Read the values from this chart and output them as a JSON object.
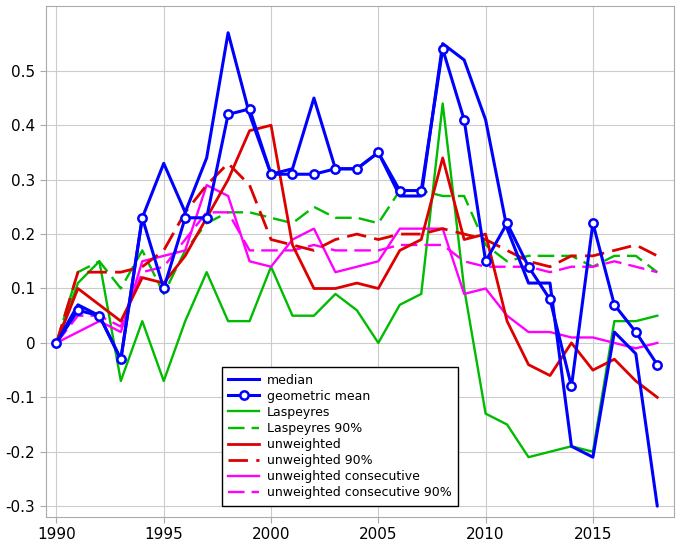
{
  "years": [
    1990,
    1991,
    1992,
    1993,
    1994,
    1995,
    1996,
    1997,
    1998,
    1999,
    2000,
    2001,
    2002,
    2003,
    2004,
    2005,
    2006,
    2007,
    2008,
    2009,
    2010,
    2011,
    2012,
    2013,
    2014,
    2015,
    2016,
    2017,
    2018
  ],
  "median": [
    0.0,
    0.07,
    0.05,
    -0.03,
    0.23,
    0.33,
    0.24,
    0.34,
    0.57,
    0.42,
    0.31,
    0.32,
    0.45,
    0.32,
    0.32,
    0.35,
    0.27,
    0.27,
    0.55,
    0.52,
    0.41,
    0.21,
    0.11,
    0.11,
    -0.19,
    -0.21,
    0.02,
    -0.02,
    -0.3
  ],
  "geo_mean": [
    0.0,
    0.06,
    0.05,
    -0.03,
    0.23,
    0.1,
    0.23,
    0.23,
    0.42,
    0.43,
    0.31,
    0.31,
    0.31,
    0.32,
    0.32,
    0.35,
    0.28,
    0.28,
    0.54,
    0.41,
    0.15,
    0.22,
    0.14,
    0.08,
    -0.08,
    0.22,
    0.07,
    0.02,
    -0.04
  ],
  "laspeyres": [
    0.0,
    0.11,
    0.15,
    -0.07,
    0.04,
    -0.07,
    0.04,
    0.13,
    0.04,
    0.04,
    0.14,
    0.05,
    0.05,
    0.09,
    0.06,
    0.0,
    0.07,
    0.09,
    0.44,
    0.1,
    -0.13,
    -0.15,
    -0.21,
    -0.2,
    -0.19,
    -0.2,
    0.04,
    0.04,
    0.05
  ],
  "laspeyres90": [
    0.0,
    0.13,
    0.15,
    0.1,
    0.17,
    0.09,
    0.17,
    0.22,
    0.24,
    0.24,
    0.23,
    0.22,
    0.25,
    0.23,
    0.23,
    0.22,
    0.28,
    0.28,
    0.27,
    0.27,
    0.18,
    0.15,
    0.16,
    0.16,
    0.16,
    0.14,
    0.16,
    0.16,
    0.13
  ],
  "unweighted": [
    0.0,
    0.1,
    0.07,
    0.04,
    0.12,
    0.11,
    0.16,
    0.23,
    0.3,
    0.39,
    0.4,
    0.18,
    0.1,
    0.1,
    0.11,
    0.1,
    0.17,
    0.19,
    0.34,
    0.19,
    0.2,
    0.04,
    -0.04,
    -0.06,
    0.0,
    -0.05,
    -0.03,
    -0.07,
    -0.1
  ],
  "unweighted90": [
    0.0,
    0.13,
    0.13,
    0.13,
    0.14,
    0.17,
    0.24,
    0.29,
    0.33,
    0.29,
    0.19,
    0.18,
    0.17,
    0.19,
    0.2,
    0.19,
    0.2,
    0.2,
    0.21,
    0.2,
    0.19,
    0.17,
    0.15,
    0.14,
    0.16,
    0.16,
    0.17,
    0.18,
    0.16
  ],
  "unweighted_consec": [
    0.0,
    0.02,
    0.04,
    0.02,
    0.15,
    0.16,
    0.17,
    0.29,
    0.27,
    0.15,
    0.14,
    0.19,
    0.21,
    0.13,
    0.14,
    0.15,
    0.21,
    0.21,
    0.21,
    0.09,
    0.1,
    0.05,
    0.02,
    0.02,
    0.01,
    0.01,
    0.0,
    -0.01,
    0.0
  ],
  "unweighted_consec90": [
    0.0,
    0.05,
    0.05,
    0.03,
    0.13,
    0.14,
    0.19,
    0.24,
    0.24,
    0.17,
    0.17,
    0.17,
    0.18,
    0.17,
    0.17,
    0.17,
    0.18,
    0.18,
    0.18,
    0.15,
    0.14,
    0.14,
    0.14,
    0.13,
    0.14,
    0.14,
    0.15,
    0.14,
    0.13
  ],
  "median_color": "#0000FF",
  "geo_mean_color": "#0000FF",
  "laspeyres_color": "#00BB00",
  "laspeyres90_color": "#00BB00",
  "unweighted_color": "#DD0000",
  "unweighted90_color": "#DD0000",
  "unweighted_consec_color": "#FF00FF",
  "unweighted_consec90_color": "#FF00FF",
  "ylim": [
    -0.32,
    0.62
  ],
  "xlim": [
    1989.5,
    2018.8
  ],
  "yticks": [
    -0.3,
    -0.2,
    -0.1,
    0.0,
    0.1,
    0.2,
    0.3,
    0.4,
    0.5
  ],
  "xticks": [
    1990,
    1995,
    2000,
    2005,
    2010,
    2015
  ]
}
